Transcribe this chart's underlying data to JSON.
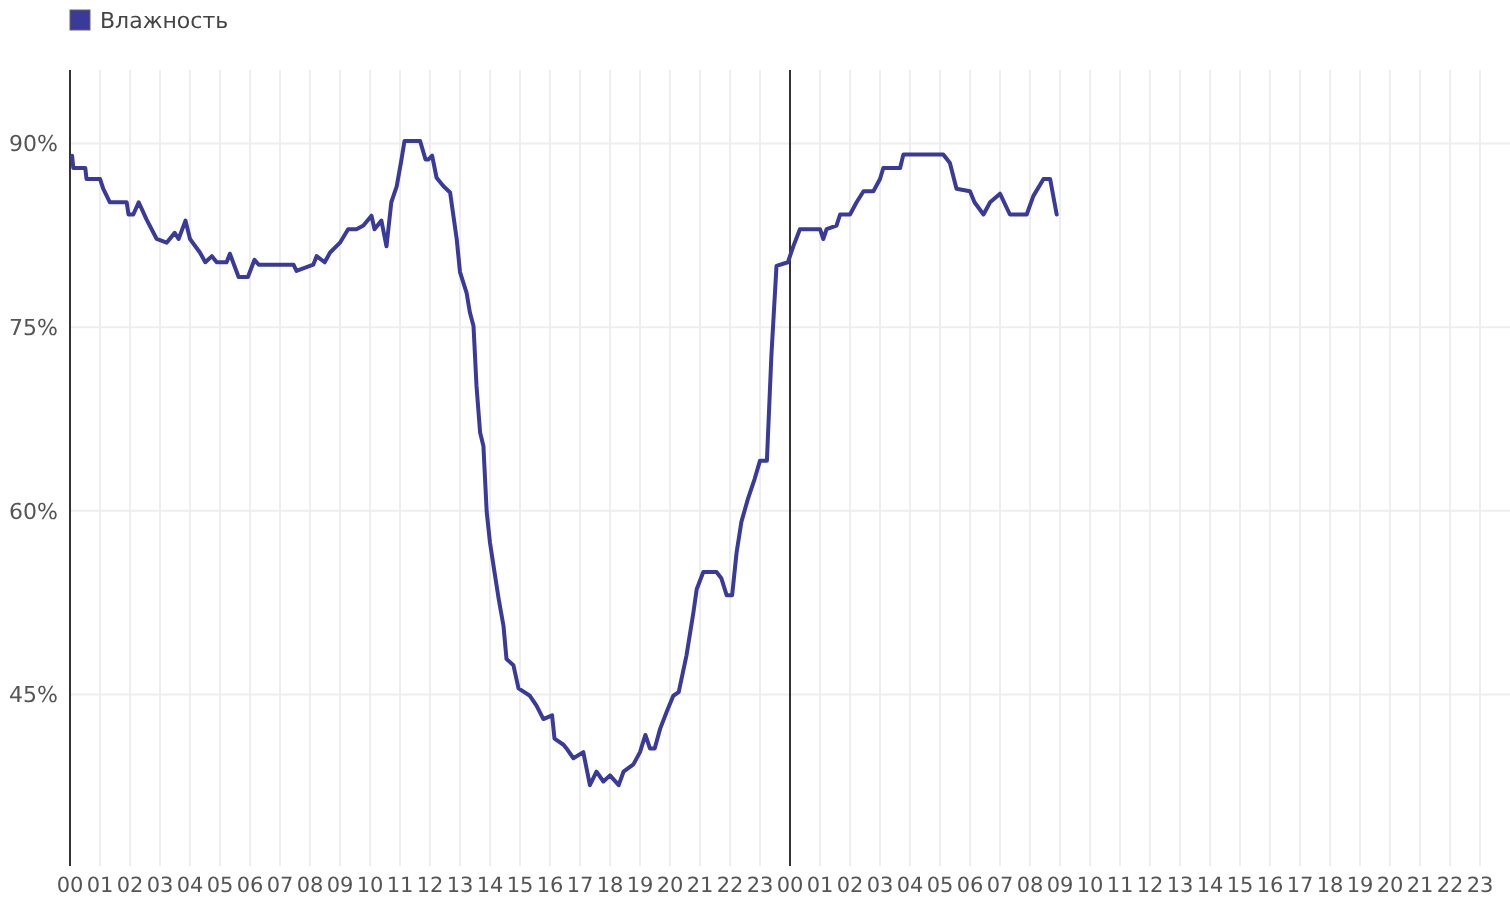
{
  "chart_data": {
    "type": "line",
    "legend": "top left",
    "grid": true,
    "xlim": [
      0,
      48
    ],
    "ylim": [
      31,
      96
    ],
    "yticks": [
      {
        "value": 45,
        "label": "45%"
      },
      {
        "value": 60,
        "label": "60%"
      },
      {
        "value": 75,
        "label": "75%"
      },
      {
        "value": 90,
        "label": "90%"
      }
    ],
    "xticks": [
      {
        "value": 0,
        "label": "00"
      },
      {
        "value": 1,
        "label": "01"
      },
      {
        "value": 2,
        "label": "02"
      },
      {
        "value": 3,
        "label": "03"
      },
      {
        "value": 4,
        "label": "04"
      },
      {
        "value": 5,
        "label": "05"
      },
      {
        "value": 6,
        "label": "06"
      },
      {
        "value": 7,
        "label": "07"
      },
      {
        "value": 8,
        "label": "08"
      },
      {
        "value": 9,
        "label": "09"
      },
      {
        "value": 10,
        "label": "10"
      },
      {
        "value": 11,
        "label": "11"
      },
      {
        "value": 12,
        "label": "12"
      },
      {
        "value": 13,
        "label": "13"
      },
      {
        "value": 14,
        "label": "14"
      },
      {
        "value": 15,
        "label": "15"
      },
      {
        "value": 16,
        "label": "16"
      },
      {
        "value": 17,
        "label": "17"
      },
      {
        "value": 18,
        "label": "18"
      },
      {
        "value": 19,
        "label": "19"
      },
      {
        "value": 20,
        "label": "20"
      },
      {
        "value": 21,
        "label": "21"
      },
      {
        "value": 22,
        "label": "22"
      },
      {
        "value": 23,
        "label": "23"
      },
      {
        "value": 24,
        "label": "00"
      },
      {
        "value": 25,
        "label": "01"
      },
      {
        "value": 26,
        "label": "02"
      },
      {
        "value": 27,
        "label": "03"
      },
      {
        "value": 28,
        "label": "04"
      },
      {
        "value": 29,
        "label": "05"
      },
      {
        "value": 30,
        "label": "06"
      },
      {
        "value": 31,
        "label": "07"
      },
      {
        "value": 32,
        "label": "08"
      },
      {
        "value": 33,
        "label": "09"
      },
      {
        "value": 34,
        "label": "10"
      },
      {
        "value": 35,
        "label": "11"
      },
      {
        "value": 36,
        "label": "12"
      },
      {
        "value": 37,
        "label": "13"
      },
      {
        "value": 38,
        "label": "14"
      },
      {
        "value": 39,
        "label": "15"
      },
      {
        "value": 40,
        "label": "16"
      },
      {
        "value": 41,
        "label": "17"
      },
      {
        "value": 42,
        "label": "18"
      },
      {
        "value": 43,
        "label": "19"
      },
      {
        "value": 44,
        "label": "20"
      },
      {
        "value": 45,
        "label": "21"
      },
      {
        "value": 46,
        "label": "22"
      },
      {
        "value": 47,
        "label": "23"
      }
    ],
    "ref_lines": [
      {
        "axis": "x",
        "value": 24,
        "color": "#333333"
      }
    ],
    "x": [
      0.07,
      0.11,
      0.51,
      0.55,
      1.0,
      1.11,
      1.33,
      1.89,
      1.95,
      2.11,
      2.29,
      2.55,
      2.89,
      3.22,
      3.49,
      3.62,
      3.85,
      4.0,
      4.33,
      4.51,
      4.73,
      4.89,
      5.22,
      5.33,
      5.62,
      5.93,
      6.15,
      6.29,
      7.45,
      7.55,
      8.11,
      8.22,
      8.49,
      8.67,
      9.0,
      9.27,
      9.55,
      9.78,
      10.05,
      10.15,
      10.38,
      10.55,
      10.71,
      10.89,
      11.05,
      11.15,
      11.67,
      11.85,
      11.95,
      12.07,
      12.22,
      12.45,
      12.67,
      12.89,
      13.0,
      13.22,
      13.33,
      13.45,
      13.55,
      13.67,
      13.78,
      13.89,
      14.0,
      14.15,
      14.29,
      14.45,
      14.55,
      14.78,
      14.95,
      15.33,
      15.55,
      15.78,
      16.07,
      16.15,
      16.45,
      16.55,
      16.78,
      17.11,
      17.33,
      17.55,
      17.78,
      18.0,
      18.29,
      18.45,
      18.78,
      19.0,
      19.18,
      19.33,
      19.49,
      19.67,
      19.89,
      20.11,
      20.29,
      20.55,
      20.78,
      20.89,
      21.11,
      21.55,
      21.71,
      21.89,
      22.07,
      22.22,
      22.38,
      22.6,
      22.82,
      23.0,
      23.23,
      23.38,
      23.55,
      23.93,
      24.11,
      24.33,
      25.0,
      25.11,
      25.22,
      25.55,
      25.67,
      26.0,
      26.22,
      26.45,
      26.78,
      27.0,
      27.11,
      27.67,
      27.78,
      29.11,
      29.33,
      29.55,
      30.0,
      30.15,
      30.45,
      30.67,
      31.0,
      31.33,
      31.89,
      32.11,
      32.45,
      32.67,
      32.89
    ],
    "series": [
      {
        "name": "Влажность",
        "color": "#3a3a9a",
        "values": [
          89.0,
          88,
          88,
          87.1,
          87.1,
          86.3,
          85.2,
          85.2,
          84.2,
          84.2,
          85.2,
          83.8,
          82.2,
          81.9,
          82.7,
          82.2,
          83.7,
          82.2,
          81.1,
          80.3,
          80.8,
          80.3,
          80.3,
          81.0,
          79.1,
          79.1,
          80.5,
          80.1,
          80.1,
          79.6,
          80.1,
          80.8,
          80.3,
          81.1,
          81.9,
          83.0,
          83.0,
          83.3,
          84.1,
          83.0,
          83.7,
          81.6,
          85.2,
          86.5,
          88.7,
          90.2,
          90.2,
          88.7,
          88.7,
          89.0,
          87.2,
          86.5,
          86.0,
          82.2,
          79.5,
          77.8,
          76.2,
          75.1,
          70.2,
          66.4,
          65.3,
          59.9,
          57.4,
          55.0,
          52.8,
          50.6,
          47.9,
          47.4,
          45.5,
          44.9,
          44.1,
          43.0,
          43.3,
          41.4,
          40.9,
          40.6,
          39.8,
          40.3,
          37.6,
          38.7,
          37.9,
          38.4,
          37.6,
          38.7,
          39.3,
          40.3,
          41.7,
          40.6,
          40.6,
          42.2,
          43.6,
          44.9,
          45.2,
          48.2,
          51.7,
          53.6,
          55.0,
          55.0,
          54.5,
          53.1,
          53.1,
          56.6,
          59.1,
          61.0,
          62.6,
          64.1,
          64.1,
          72.7,
          80.0,
          80.3,
          81.6,
          83.0,
          83.0,
          82.2,
          83.0,
          83.3,
          84.2,
          84.2,
          85.2,
          86.1,
          86.1,
          87.1,
          88.0,
          88.0,
          89.1,
          89.1,
          88.4,
          86.3,
          86.1,
          85.2,
          84.2,
          85.2,
          85.9,
          84.2,
          84.2,
          85.7,
          87.1,
          87.1,
          84.2
        ]
      }
    ]
  }
}
